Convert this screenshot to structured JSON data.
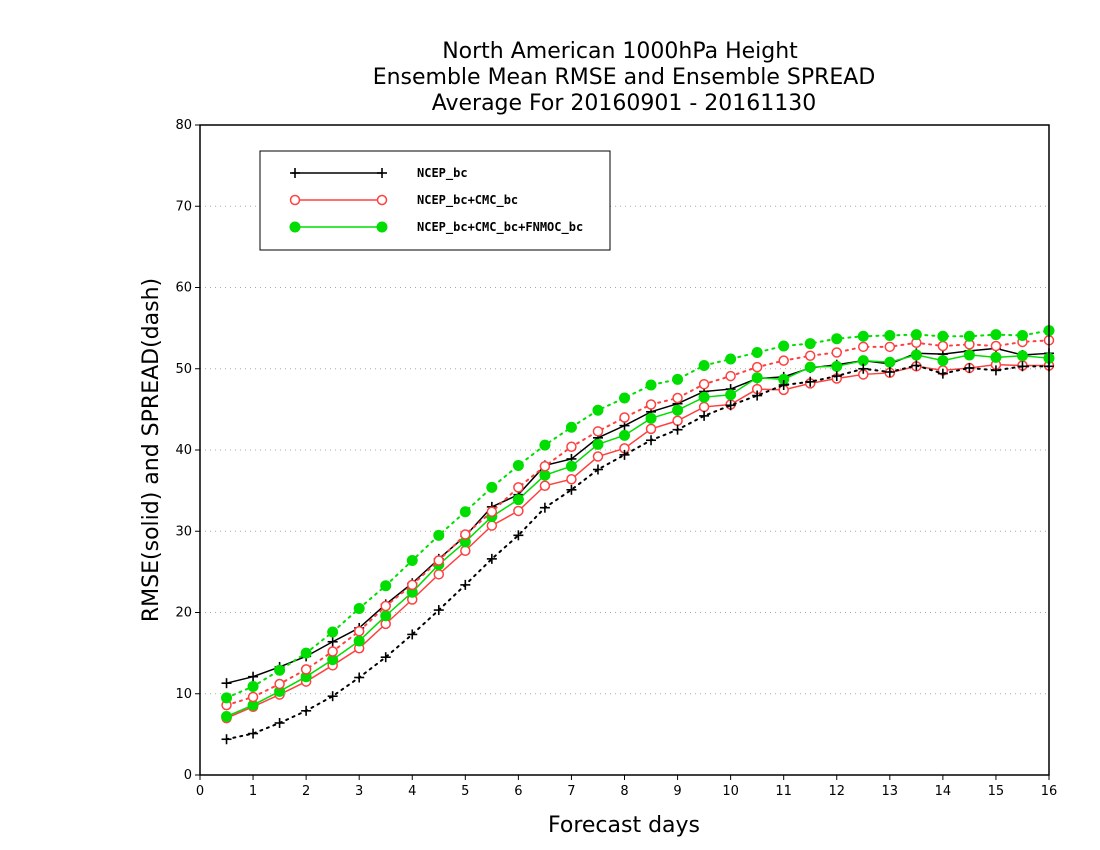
{
  "chart_data": {
    "type": "line",
    "title": [
      "North American 1000hPa Height",
      "Ensemble Mean RMSE and Ensemble SPREAD",
      "Average For 20160901 - 20161130"
    ],
    "xlabel": "Forecast days",
    "ylabel": "RMSE(solid) and SPREAD(dash)",
    "xlim": [
      0,
      16
    ],
    "ylim": [
      0,
      80
    ],
    "xticks": [
      "0",
      "1",
      "2",
      "3",
      "4",
      "5",
      "6",
      "7",
      "8",
      "9",
      "10",
      "11",
      "12",
      "13",
      "14",
      "15",
      "16"
    ],
    "yticks": [
      "0",
      "10",
      "20",
      "30",
      "40",
      "50",
      "60",
      "70",
      "80"
    ],
    "grid": true,
    "legend_position": "top-left",
    "x": [
      0.5,
      1,
      1.5,
      2,
      2.5,
      3,
      3.5,
      4,
      4.5,
      5,
      5.5,
      6,
      6.5,
      7,
      7.5,
      8,
      8.5,
      9,
      9.5,
      10,
      10.5,
      11,
      11.5,
      12,
      12.5,
      13,
      13.5,
      14,
      14.5,
      15,
      15.5,
      16
    ],
    "series": [
      {
        "name": "NCEP_bc",
        "metric": "RMSE",
        "style": "solid",
        "color": "#000000",
        "marker": "plus",
        "values": [
          11.3,
          12.1,
          13.3,
          14.6,
          16.4,
          18.1,
          21.0,
          23.6,
          26.6,
          29.4,
          33.0,
          34.5,
          38.1,
          38.9,
          41.5,
          43.0,
          44.7,
          45.7,
          47.2,
          47.5,
          48.8,
          49.0,
          50.1,
          50.5,
          51.0,
          50.6,
          51.9,
          51.8,
          52.2,
          52.5,
          51.7,
          51.9
        ]
      },
      {
        "name": "NCEP_bc+CMC_bc",
        "metric": "RMSE",
        "style": "solid",
        "color": "#ff4040",
        "marker": "open-circle",
        "values": [
          7.0,
          8.4,
          9.9,
          11.5,
          13.5,
          15.6,
          18.6,
          21.6,
          24.7,
          27.6,
          30.7,
          32.5,
          35.6,
          36.4,
          39.2,
          40.2,
          42.6,
          43.6,
          45.3,
          45.6,
          47.5,
          47.4,
          48.2,
          48.8,
          49.3,
          49.5,
          50.3,
          49.8,
          50.1,
          50.5,
          50.4,
          50.4
        ]
      },
      {
        "name": "NCEP_bc+CMC_bc+FNMOC_bc",
        "metric": "RMSE",
        "style": "solid",
        "color": "#00dd00",
        "marker": "filled-circle",
        "values": [
          7.2,
          8.6,
          10.3,
          12.1,
          14.2,
          16.5,
          19.6,
          22.5,
          25.9,
          28.7,
          31.8,
          33.9,
          36.9,
          38.0,
          40.7,
          41.8,
          43.9,
          44.9,
          46.5,
          46.8,
          48.9,
          48.7,
          50.2,
          50.3,
          51.0,
          50.8,
          51.7,
          51.0,
          51.7,
          51.4,
          51.6,
          51.3
        ]
      },
      {
        "name": "NCEP_bc",
        "metric": "SPREAD",
        "style": "dash",
        "color": "#000000",
        "marker": "plus",
        "values": [
          4.4,
          5.1,
          6.4,
          7.9,
          9.7,
          12.0,
          14.5,
          17.3,
          20.3,
          23.4,
          26.6,
          29.5,
          32.9,
          35.1,
          37.6,
          39.4,
          41.2,
          42.5,
          44.2,
          45.5,
          46.7,
          48.0,
          48.4,
          49.1,
          50.0,
          49.6,
          50.4,
          49.4,
          50.1,
          49.8,
          50.3,
          50.3
        ]
      },
      {
        "name": "NCEP_bc+CMC_bc",
        "metric": "SPREAD",
        "style": "dash",
        "color": "#ff4040",
        "marker": "open-circle",
        "values": [
          8.6,
          9.6,
          11.2,
          13.0,
          15.2,
          17.7,
          20.8,
          23.4,
          26.4,
          29.6,
          32.4,
          35.4,
          38.0,
          40.4,
          42.3,
          44.0,
          45.6,
          46.4,
          48.1,
          49.1,
          50.2,
          51.0,
          51.6,
          52.0,
          52.7,
          52.7,
          53.2,
          52.8,
          53.0,
          52.8,
          53.3,
          53.5
        ]
      },
      {
        "name": "NCEP_bc+CMC_bc+FNMOC_bc",
        "metric": "SPREAD",
        "style": "dash",
        "color": "#00dd00",
        "marker": "filled-circle",
        "values": [
          9.5,
          10.9,
          12.9,
          15.0,
          17.6,
          20.5,
          23.3,
          26.4,
          29.5,
          32.4,
          35.4,
          38.1,
          40.6,
          42.8,
          44.9,
          46.4,
          48.0,
          48.7,
          50.4,
          51.2,
          52.0,
          52.8,
          53.1,
          53.7,
          54.0,
          54.1,
          54.2,
          54.0,
          54.0,
          54.2,
          54.1,
          54.7
        ]
      }
    ],
    "legend": [
      {
        "label": "NCEP_bc",
        "color": "#000000",
        "marker": "plus"
      },
      {
        "label": "NCEP_bc+CMC_bc",
        "color": "#ff4040",
        "marker": "open-circle"
      },
      {
        "label": "NCEP_bc+CMC_bc+FNMOC_bc",
        "color": "#00dd00",
        "marker": "filled-circle"
      }
    ]
  }
}
